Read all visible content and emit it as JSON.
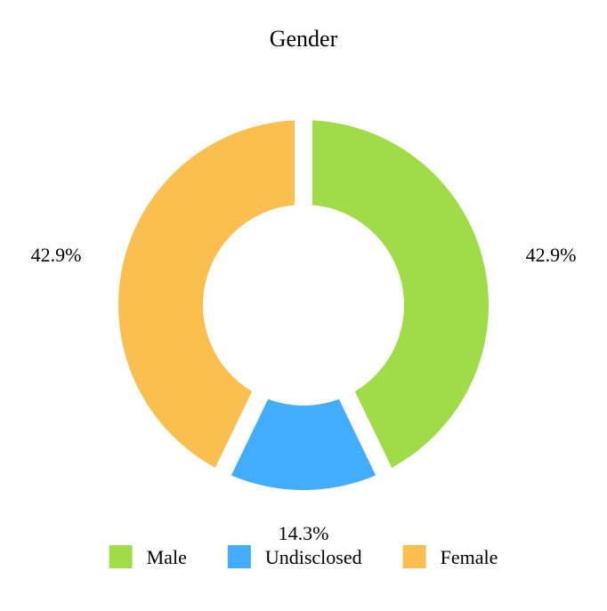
{
  "chart_data": {
    "type": "pie",
    "title": "Gender",
    "donut": true,
    "categories": [
      "Male",
      "Undisclosed",
      "Female"
    ],
    "values": [
      42.9,
      14.3,
      42.9
    ],
    "labels": [
      "42.9%",
      "14.3%",
      "42.9%"
    ],
    "colors": [
      "#9fdc47",
      "#42acff",
      "#fbbf50"
    ],
    "legend": {
      "placement": "bottom",
      "entries": [
        "Male",
        "Undisclosed",
        "Female"
      ]
    }
  }
}
